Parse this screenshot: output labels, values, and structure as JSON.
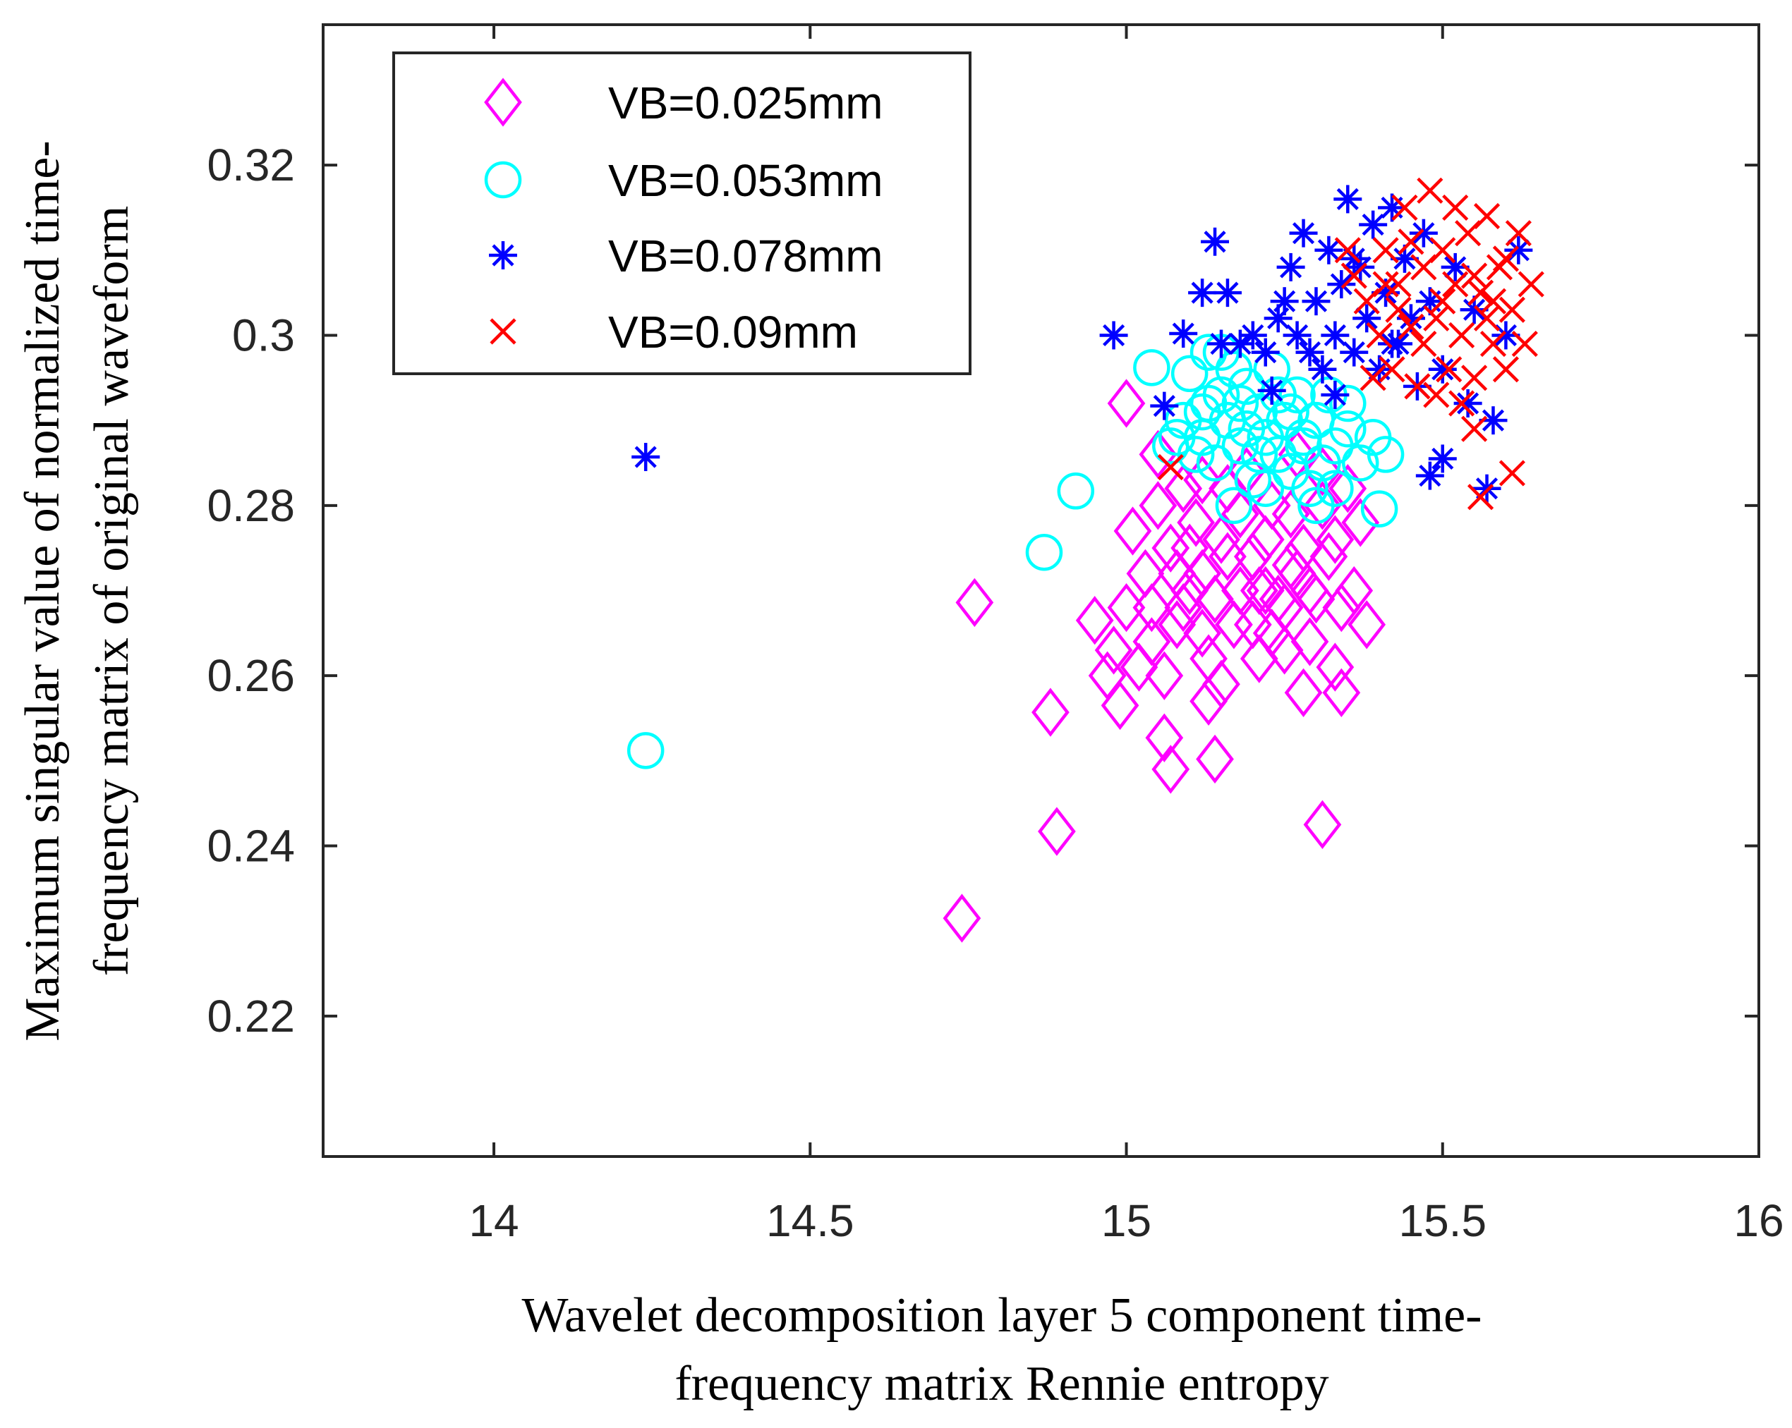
{
  "chart_data": {
    "type": "scatter",
    "title": "",
    "xlabel_lines": [
      "Wavelet decomposition layer 5 component time-",
      "frequency matrix Rennie entropy"
    ],
    "ylabel_lines": [
      "Maximum singular value of normalized time-",
      "frequency matrix of original waveform"
    ],
    "xlim": [
      13.73,
      16.0
    ],
    "ylim": [
      0.2035,
      0.3365
    ],
    "xticks": [
      14,
      14.5,
      15,
      15.5,
      16
    ],
    "xtick_labels": [
      "14",
      "14.5",
      "15",
      "15.5",
      "16"
    ],
    "yticks": [
      0.22,
      0.24,
      0.26,
      0.28,
      0.3,
      0.32
    ],
    "ytick_labels": [
      "0.22",
      "0.24",
      "0.26",
      "0.28",
      "0.3",
      "0.32"
    ],
    "legend": {
      "position": "top-left"
    },
    "series": [
      {
        "name": "VB=0.025mm",
        "marker": "diamond",
        "color": "#ff00ff",
        "points": [
          [
            14.74,
            0.2315
          ],
          [
            14.89,
            0.2417
          ],
          [
            15.31,
            0.2425
          ],
          [
            14.76,
            0.2686
          ],
          [
            14.88,
            0.2557
          ],
          [
            15.07,
            0.249
          ],
          [
            15.14,
            0.2502
          ],
          [
            15.06,
            0.2527
          ],
          [
            15.0,
            0.292
          ],
          [
            15.05,
            0.286
          ],
          [
            14.95,
            0.2665
          ],
          [
            14.97,
            0.26
          ],
          [
            14.99,
            0.2565
          ],
          [
            15.02,
            0.261
          ],
          [
            15.04,
            0.264
          ],
          [
            15.06,
            0.26
          ],
          [
            15.08,
            0.266
          ],
          [
            15.1,
            0.27
          ],
          [
            15.12,
            0.265
          ],
          [
            15.13,
            0.257
          ],
          [
            15.15,
            0.259
          ],
          [
            15.16,
            0.274
          ],
          [
            15.18,
            0.27
          ],
          [
            15.2,
            0.266
          ],
          [
            15.22,
            0.276
          ],
          [
            15.24,
            0.269
          ],
          [
            15.25,
            0.263
          ],
          [
            15.27,
            0.272
          ],
          [
            15.28,
            0.258
          ],
          [
            15.3,
            0.269
          ],
          [
            15.32,
            0.274
          ],
          [
            15.33,
            0.261
          ],
          [
            15.34,
            0.258
          ],
          [
            15.36,
            0.27
          ],
          [
            15.37,
            0.278
          ],
          [
            15.38,
            0.266
          ],
          [
            15.01,
            0.277
          ],
          [
            15.03,
            0.272
          ],
          [
            15.05,
            0.28
          ],
          [
            15.07,
            0.275
          ],
          [
            15.09,
            0.282
          ],
          [
            15.11,
            0.278
          ],
          [
            15.12,
            0.272
          ],
          [
            15.14,
            0.269
          ],
          [
            15.16,
            0.282
          ],
          [
            15.18,
            0.279
          ],
          [
            15.2,
            0.274
          ],
          [
            15.22,
            0.27
          ],
          [
            15.23,
            0.265
          ],
          [
            15.26,
            0.279
          ],
          [
            15.28,
            0.275
          ],
          [
            15.29,
            0.27
          ],
          [
            15.31,
            0.28
          ],
          [
            15.33,
            0.276
          ],
          [
            15.35,
            0.282
          ],
          [
            15.09,
            0.268
          ],
          [
            15.13,
            0.262
          ],
          [
            15.17,
            0.266
          ],
          [
            15.21,
            0.262
          ],
          [
            15.25,
            0.268
          ],
          [
            15.29,
            0.264
          ],
          [
            15.04,
            0.268
          ],
          [
            15.08,
            0.272
          ],
          [
            15.15,
            0.276
          ],
          [
            15.19,
            0.284
          ],
          [
            15.23,
            0.28
          ],
          [
            15.27,
            0.286
          ],
          [
            15.31,
            0.284
          ],
          [
            14.98,
            0.263
          ],
          [
            15.0,
            0.268
          ],
          [
            15.12,
            0.283
          ],
          [
            15.21,
            0.27
          ],
          [
            15.26,
            0.273
          ],
          [
            15.34,
            0.268
          ],
          [
            15.1,
            0.275
          ]
        ]
      },
      {
        "name": "VB=0.053mm",
        "marker": "circle",
        "color": "#00ffff",
        "points": [
          [
            14.24,
            0.2512
          ],
          [
            14.87,
            0.2745
          ],
          [
            14.92,
            0.2817
          ],
          [
            15.04,
            0.2962
          ],
          [
            15.4,
            0.2796
          ],
          [
            15.17,
            0.28
          ],
          [
            15.07,
            0.287
          ],
          [
            15.09,
            0.29
          ],
          [
            15.1,
            0.2955
          ],
          [
            15.12,
            0.288
          ],
          [
            15.13,
            0.292
          ],
          [
            15.14,
            0.285
          ],
          [
            15.15,
            0.298
          ],
          [
            15.16,
            0.29
          ],
          [
            15.18,
            0.287
          ],
          [
            15.19,
            0.294
          ],
          [
            15.2,
            0.283
          ],
          [
            15.21,
            0.291
          ],
          [
            15.22,
            0.288
          ],
          [
            15.23,
            0.296
          ],
          [
            15.24,
            0.286
          ],
          [
            15.25,
            0.29
          ],
          [
            15.26,
            0.284
          ],
          [
            15.27,
            0.293
          ],
          [
            15.28,
            0.288
          ],
          [
            15.29,
            0.282
          ],
          [
            15.3,
            0.29
          ],
          [
            15.31,
            0.285
          ],
          [
            15.32,
            0.293
          ],
          [
            15.33,
            0.287
          ],
          [
            15.35,
            0.289
          ],
          [
            15.37,
            0.285
          ],
          [
            15.39,
            0.288
          ],
          [
            15.41,
            0.286
          ],
          [
            15.3,
            0.28
          ],
          [
            15.22,
            0.282
          ],
          [
            15.11,
            0.286
          ],
          [
            15.15,
            0.293
          ],
          [
            15.19,
            0.289
          ],
          [
            15.26,
            0.291
          ],
          [
            15.17,
            0.296
          ],
          [
            15.13,
            0.298
          ],
          [
            15.21,
            0.286
          ],
          [
            15.24,
            0.293
          ],
          [
            15.28,
            0.287
          ],
          [
            15.33,
            0.282
          ],
          [
            15.08,
            0.288
          ],
          [
            15.35,
            0.292
          ],
          [
            15.12,
            0.291
          ],
          [
            15.18,
            0.292
          ]
        ]
      },
      {
        "name": "VB=0.078mm",
        "marker": "asterisk",
        "color": "#0000ff",
        "points": [
          [
            14.24,
            0.2857
          ],
          [
            14.98,
            0.3
          ],
          [
            15.09,
            0.3002
          ],
          [
            15.06,
            0.2917
          ],
          [
            15.14,
            0.311
          ],
          [
            15.12,
            0.305
          ],
          [
            15.16,
            0.305
          ],
          [
            15.23,
            0.2935
          ],
          [
            15.57,
            0.282
          ],
          [
            15.48,
            0.2835
          ],
          [
            15.5,
            0.2855
          ],
          [
            15.2,
            0.3
          ],
          [
            15.22,
            0.298
          ],
          [
            15.24,
            0.302
          ],
          [
            15.26,
            0.308
          ],
          [
            15.27,
            0.3
          ],
          [
            15.28,
            0.312
          ],
          [
            15.3,
            0.304
          ],
          [
            15.31,
            0.296
          ],
          [
            15.32,
            0.31
          ],
          [
            15.33,
            0.3
          ],
          [
            15.34,
            0.306
          ],
          [
            15.35,
            0.316
          ],
          [
            15.36,
            0.298
          ],
          [
            15.37,
            0.308
          ],
          [
            15.38,
            0.302
          ],
          [
            15.39,
            0.313
          ],
          [
            15.4,
            0.296
          ],
          [
            15.41,
            0.305
          ],
          [
            15.42,
            0.315
          ],
          [
            15.43,
            0.299
          ],
          [
            15.44,
            0.309
          ],
          [
            15.45,
            0.302
          ],
          [
            15.46,
            0.294
          ],
          [
            15.47,
            0.312
          ],
          [
            15.48,
            0.304
          ],
          [
            15.5,
            0.296
          ],
          [
            15.52,
            0.308
          ],
          [
            15.54,
            0.292
          ],
          [
            15.55,
            0.303
          ],
          [
            15.58,
            0.29
          ],
          [
            15.62,
            0.31
          ],
          [
            15.6,
            0.3
          ],
          [
            15.25,
            0.304
          ],
          [
            15.29,
            0.298
          ],
          [
            15.33,
            0.293
          ],
          [
            15.36,
            0.309
          ],
          [
            15.18,
            0.299
          ],
          [
            15.15,
            0.299
          ],
          [
            15.42,
            0.299
          ]
        ]
      },
      {
        "name": "VB=0.09mm",
        "marker": "x",
        "color": "#ff0000",
        "points": [
          [
            15.07,
            0.2845
          ],
          [
            15.61,
            0.2838
          ],
          [
            15.55,
            0.289
          ],
          [
            15.56,
            0.281
          ],
          [
            15.38,
            0.304
          ],
          [
            15.4,
            0.3
          ],
          [
            15.41,
            0.31
          ],
          [
            15.42,
            0.296
          ],
          [
            15.43,
            0.306
          ],
          [
            15.44,
            0.315
          ],
          [
            15.45,
            0.301
          ],
          [
            15.46,
            0.294
          ],
          [
            15.47,
            0.308
          ],
          [
            15.48,
            0.317
          ],
          [
            15.49,
            0.302
          ],
          [
            15.5,
            0.31
          ],
          [
            15.51,
            0.296
          ],
          [
            15.52,
            0.306
          ],
          [
            15.53,
            0.3
          ],
          [
            15.54,
            0.312
          ],
          [
            15.55,
            0.295
          ],
          [
            15.56,
            0.305
          ],
          [
            15.57,
            0.314
          ],
          [
            15.58,
            0.299
          ],
          [
            15.59,
            0.308
          ],
          [
            15.6,
            0.296
          ],
          [
            15.61,
            0.303
          ],
          [
            15.62,
            0.312
          ],
          [
            15.63,
            0.299
          ],
          [
            15.64,
            0.306
          ],
          [
            15.36,
            0.307
          ],
          [
            15.39,
            0.295
          ],
          [
            15.45,
            0.311
          ],
          [
            15.5,
            0.304
          ],
          [
            15.53,
            0.292
          ],
          [
            15.47,
            0.299
          ],
          [
            15.43,
            0.303
          ],
          [
            15.57,
            0.302
          ],
          [
            15.6,
            0.309
          ],
          [
            15.52,
            0.315
          ],
          [
            15.35,
            0.31
          ],
          [
            15.49,
            0.293
          ],
          [
            15.55,
            0.307
          ],
          [
            15.41,
            0.306
          ],
          [
            15.58,
            0.304
          ]
        ]
      }
    ]
  }
}
